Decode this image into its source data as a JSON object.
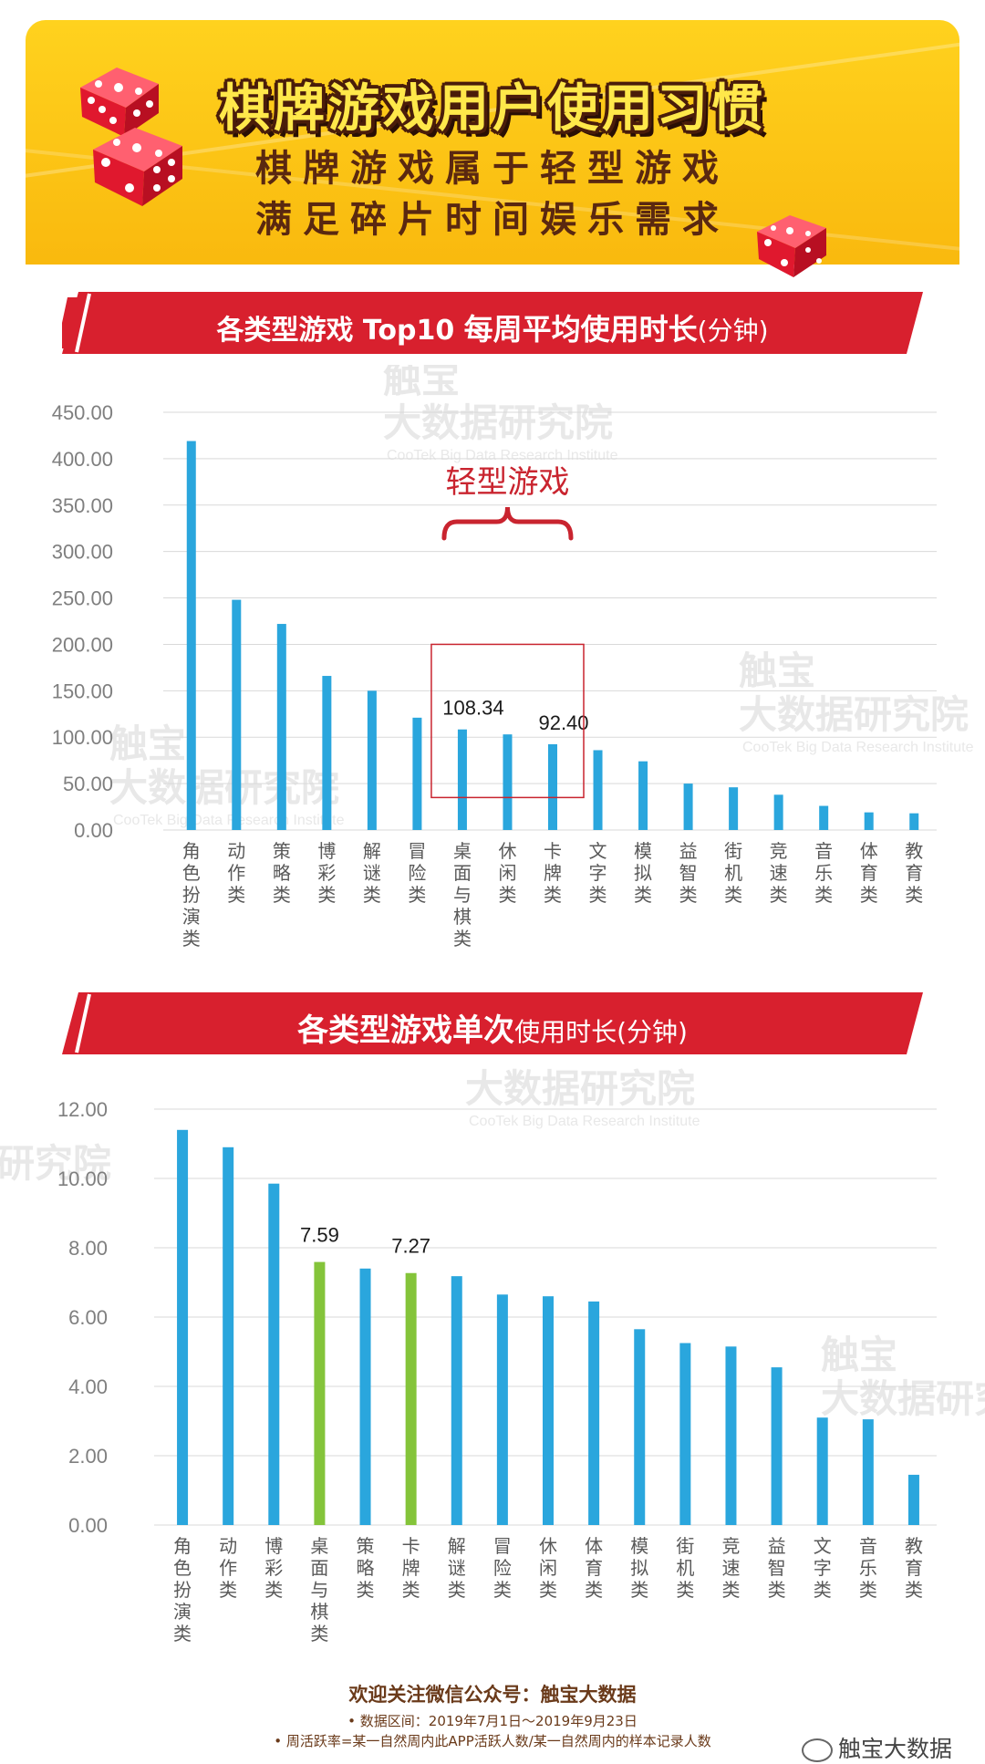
{
  "header": {
    "title": "棋牌游戏用户使用习惯",
    "subtitle_line1": "棋牌游戏属于轻型游戏",
    "subtitle_line2": "满足碎片时间娱乐需求",
    "icons": [
      "dice-icon",
      "dice-icon",
      "dice-icon"
    ]
  },
  "colors": {
    "banner": "#ffc21a",
    "ribbon": "#d8202e",
    "bar": "#2aa6dd",
    "highlight_bar": "#84c43a",
    "annotation": "#c9242f",
    "grid": "#d9d9d9",
    "axis_text": "#7f7f7f"
  },
  "watermark": {
    "brand": "触宝",
    "name": "大数据研究院",
    "english": "CooTek Big Data Research Institute"
  },
  "chart1_header": {
    "prefix": "各类型游戏 Top10 ",
    "emphasis": "每周平均使用时长",
    "suffix": "(分钟)"
  },
  "chart2_header": {
    "emphasis": "各类型游戏单次",
    "suffix": "使用时长(分钟)"
  },
  "chart_data": [
    {
      "type": "bar",
      "title": "各类型游戏 Top10 每周平均使用时长(分钟)",
      "categories": [
        "角色扮演类",
        "动作类",
        "策略类",
        "博彩类",
        "解谜类",
        "冒险类",
        "桌面与棋类",
        "休闲类",
        "卡牌类",
        "文字类",
        "模拟类",
        "益智类",
        "街机类",
        "竞速类",
        "音乐类",
        "体育类",
        "教育类"
      ],
      "values": [
        419,
        248,
        222,
        166,
        150,
        121,
        108.34,
        103,
        92.4,
        86,
        74,
        50,
        46,
        38,
        26,
        19,
        18
      ],
      "ylim": [
        0,
        450
      ],
      "yticks": [
        "0.00",
        "50.00",
        "100.00",
        "150.00",
        "200.00",
        "250.00",
        "300.00",
        "350.00",
        "400.00",
        "450.00"
      ],
      "ytick_values": [
        0,
        50,
        100,
        150,
        200,
        250,
        300,
        350,
        400,
        450
      ],
      "data_labels": [
        {
          "index": 6,
          "text": "108.34"
        },
        {
          "index": 8,
          "text": "92.40"
        }
      ],
      "annotation": {
        "text": "轻型游戏",
        "from_index": 6,
        "to_index": 8
      },
      "highlight_box": {
        "from_index": 6,
        "to_index": 8,
        "y_from": 35,
        "y_to": 200
      },
      "grid": true,
      "legend": "none"
    },
    {
      "type": "bar",
      "title": "各类型游戏单次使用时长(分钟)",
      "categories": [
        "角色扮演类",
        "动作类",
        "博彩类",
        "桌面与棋类",
        "策略类",
        "卡牌类",
        "解谜类",
        "冒险类",
        "休闲类",
        "体育类",
        "模拟类",
        "街机类",
        "竞速类",
        "益智类",
        "文字类",
        "音乐类",
        "教育类"
      ],
      "values": [
        11.4,
        10.9,
        9.85,
        7.59,
        7.4,
        7.27,
        7.18,
        6.65,
        6.6,
        6.45,
        5.65,
        5.25,
        5.15,
        4.55,
        3.1,
        3.05,
        1.45
      ],
      "highlight_indices": [
        3,
        5
      ],
      "ylim": [
        0,
        12
      ],
      "yticks": [
        "0.00",
        "2.00",
        "4.00",
        "6.00",
        "8.00",
        "10.00",
        "12.00"
      ],
      "ytick_values": [
        0,
        2,
        4,
        6,
        8,
        10,
        12
      ],
      "data_labels": [
        {
          "index": 3,
          "text": "7.59"
        },
        {
          "index": 5,
          "text": "7.27"
        }
      ],
      "grid": true,
      "legend": "none"
    }
  ],
  "footer": {
    "line1": "欢迎关注微信公众号：触宝大数据",
    "line2": "•  数据区间：2019年7月1日～2019年9月23日",
    "line3": "•  周活跃率=某一自然周内此APP活跃人数/某一自然周内的样本记录人数",
    "wechat_label": "触宝大数据",
    "wechat_icon": "wechat-icon"
  }
}
